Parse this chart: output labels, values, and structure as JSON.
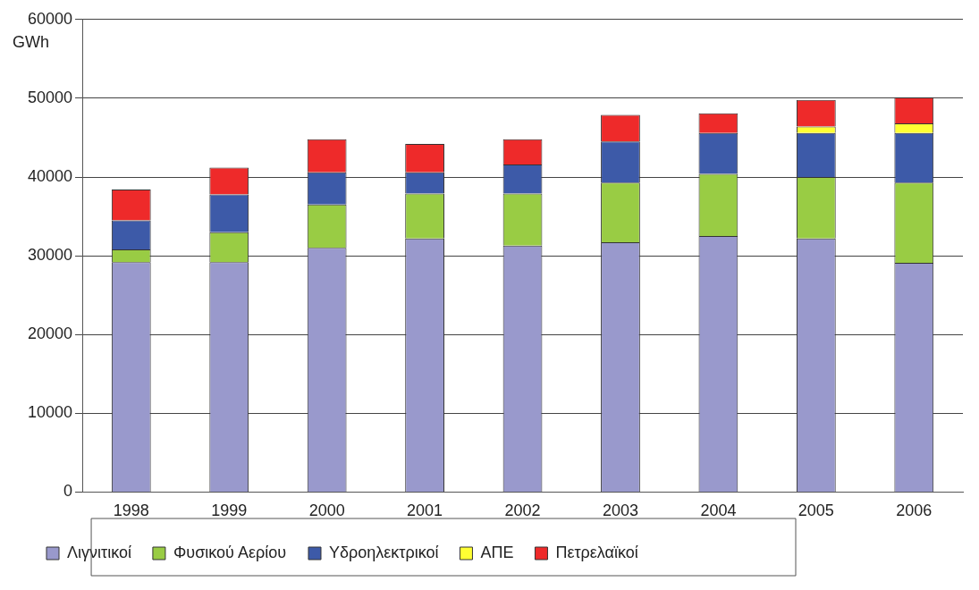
{
  "chart_data": {
    "type": "bar",
    "stacked": true,
    "ylabel": "GWh",
    "categories": [
      "1998",
      "1999",
      "2000",
      "2001",
      "2002",
      "2003",
      "2004",
      "2005",
      "2006"
    ],
    "series": [
      {
        "name": "Λιγνιτικοί",
        "color": "#9999cc",
        "values": [
          29200,
          29200,
          31000,
          32200,
          31300,
          31700,
          32500,
          32200,
          29100
        ]
      },
      {
        "name": "Φυσικού Αερίου",
        "color": "#99cc44",
        "values": [
          1600,
          3800,
          5500,
          5700,
          6600,
          7600,
          7900,
          7800,
          10200
        ]
      },
      {
        "name": "Υδροηλεκτρικοί",
        "color": "#3d5aa8",
        "values": [
          3700,
          4800,
          4100,
          2700,
          3700,
          5200,
          5200,
          5600,
          6300
        ]
      },
      {
        "name": "ΑΠΕ",
        "color": "#ffff33",
        "values": [
          null,
          null,
          null,
          null,
          null,
          null,
          null,
          800,
          1200
        ]
      },
      {
        "name": "Πετρελαϊκοί",
        "color": "#ee2a2a",
        "values": [
          3900,
          3400,
          4200,
          3600,
          3200,
          3400,
          2500,
          3400,
          3300
        ]
      }
    ],
    "ylim": [
      0,
      60000
    ],
    "yticks": [
      0,
      10000,
      20000,
      30000,
      40000,
      50000,
      60000
    ],
    "grid": "y",
    "legend": "bottom"
  }
}
